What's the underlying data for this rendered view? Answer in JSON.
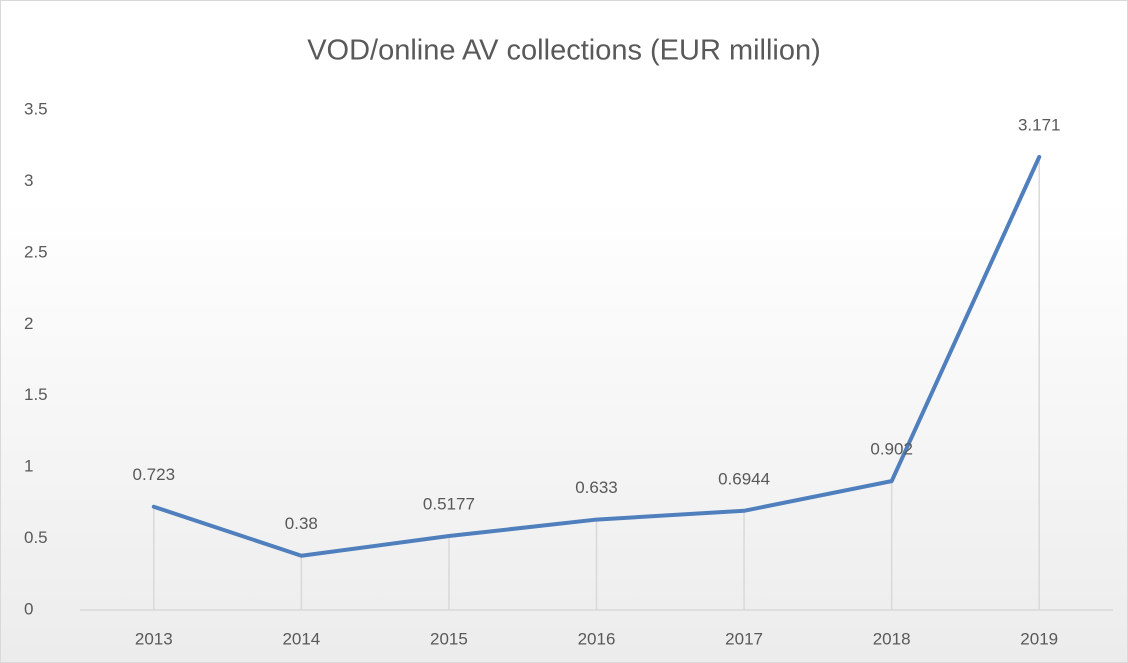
{
  "chart_data": {
    "type": "line",
    "title": "VOD/online AV collections (EUR million)",
    "categories": [
      "2013",
      "2014",
      "2015",
      "2016",
      "2017",
      "2018",
      "2019"
    ],
    "values": [
      0.723,
      0.38,
      0.5177,
      0.633,
      0.6944,
      0.902,
      3.171
    ],
    "color": "#4f7fbd",
    "ylim": [
      0,
      3.5
    ],
    "yticks": [
      0,
      0.5,
      1,
      1.5,
      2,
      2.5,
      3,
      3.5
    ],
    "drop_lines": true
  }
}
